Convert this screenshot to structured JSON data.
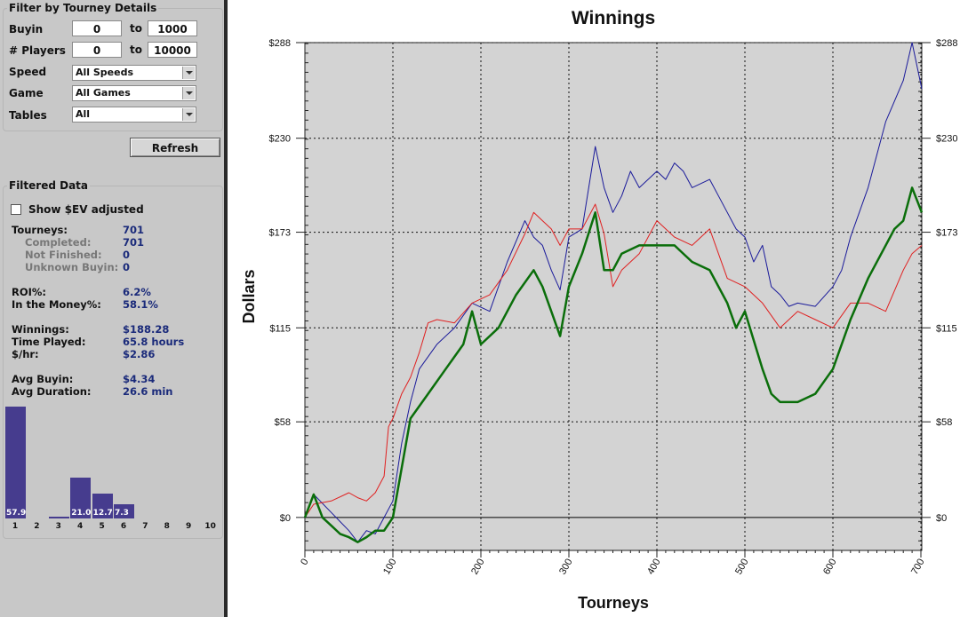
{
  "filter": {
    "title": "Filter by Tourney Details",
    "buyin_label": "Buyin",
    "buyin_from": "0",
    "buyin_to": "1000",
    "players_label": "# Players",
    "players_from": "0",
    "players_to": "10000",
    "to_label": "to",
    "speed_label": "Speed",
    "speed_value": "All Speeds",
    "game_label": "Game",
    "game_value": "All Games",
    "tables_label": "Tables",
    "tables_value": "All",
    "refresh": "Refresh"
  },
  "filtered": {
    "title": "Filtered Data",
    "ev_label": "Show $EV adjusted",
    "stats": [
      {
        "label": "Tourneys:",
        "value": "701",
        "sub": false
      },
      {
        "label": "Completed:",
        "value": "701",
        "sub": true
      },
      {
        "label": "Not Finished:",
        "value": "0",
        "sub": true
      },
      {
        "label": "Unknown Buyin:",
        "value": "0",
        "sub": true
      },
      {
        "label": "ROI%:",
        "value": "6.2%",
        "sub": false
      },
      {
        "label": "In the Money%:",
        "value": "58.1%",
        "sub": false
      },
      {
        "label": "Winnings:",
        "value": "$188.28",
        "sub": false
      },
      {
        "label": "Time Played:",
        "value": "65.8 hours",
        "sub": false
      },
      {
        "label": "$/hr:",
        "value": "$2.86",
        "sub": false
      },
      {
        "label": "Avg Buyin:",
        "value": "$4.34",
        "sub": false
      },
      {
        "label": "Avg Duration:",
        "value": "26.6 min",
        "sub": false
      }
    ]
  },
  "finish_histogram": {
    "positions": [
      "1",
      "2",
      "3",
      "4",
      "5",
      "6",
      "7",
      "8",
      "9",
      "10"
    ],
    "values": [
      57.9,
      0,
      1.1,
      21.0,
      12.7,
      7.3,
      0,
      0,
      0,
      0
    ],
    "labels": [
      "57.9",
      "",
      "",
      "21.0",
      "12.7",
      "7.3",
      "",
      "",
      "",
      ""
    ]
  },
  "colors": {
    "panel_bg": "#c8c8c8",
    "chart_bg": "#d3d3d3",
    "blue_line": "#1a1a9a",
    "red_line": "#e02020",
    "green_line": "#0a6e0a",
    "bar": "#463c8e"
  },
  "chart_data": {
    "type": "line",
    "title": "Winnings",
    "xlabel": "Tourneys",
    "ylabel": "Dollars",
    "xlim": [
      0,
      701
    ],
    "ylim": [
      -20,
      288
    ],
    "x_ticks": [
      "0",
      "100",
      "200",
      "300",
      "400",
      "500",
      "600",
      "700"
    ],
    "y_ticks": [
      "$0",
      "$58",
      "$115",
      "$173",
      "$230",
      "$288"
    ],
    "grid": true,
    "series": [
      {
        "color": "blue",
        "width": 1,
        "x": [
          0,
          10,
          30,
          50,
          60,
          70,
          80,
          90,
          100,
          110,
          120,
          130,
          150,
          170,
          190,
          210,
          230,
          250,
          260,
          270,
          280,
          290,
          300,
          315,
          330,
          340,
          350,
          360,
          370,
          380,
          400,
          410,
          420,
          430,
          440,
          460,
          470,
          480,
          490,
          500,
          510,
          520,
          530,
          540,
          550,
          560,
          580,
          600,
          610,
          620,
          640,
          660,
          680,
          690,
          701
        ],
        "y": [
          0,
          14,
          3,
          -8,
          -15,
          -8,
          -10,
          0,
          10,
          45,
          70,
          90,
          105,
          115,
          130,
          125,
          155,
          180,
          170,
          165,
          150,
          138,
          170,
          175,
          225,
          200,
          185,
          195,
          210,
          200,
          210,
          205,
          215,
          210,
          200,
          205,
          195,
          185,
          175,
          170,
          155,
          165,
          140,
          135,
          128,
          130,
          128,
          140,
          150,
          170,
          200,
          240,
          265,
          288,
          260
        ]
      },
      {
        "color": "red",
        "width": 1,
        "x": [
          0,
          10,
          30,
          50,
          60,
          70,
          80,
          90,
          95,
          100,
          110,
          120,
          130,
          140,
          150,
          170,
          190,
          210,
          230,
          250,
          260,
          270,
          280,
          290,
          300,
          315,
          330,
          340,
          350,
          360,
          380,
          400,
          420,
          440,
          460,
          480,
          500,
          520,
          540,
          560,
          580,
          600,
          620,
          640,
          660,
          680,
          690,
          701
        ],
        "y": [
          0,
          8,
          10,
          15,
          12,
          10,
          15,
          25,
          55,
          60,
          75,
          85,
          100,
          118,
          120,
          118,
          130,
          135,
          150,
          172,
          185,
          180,
          175,
          165,
          175,
          175,
          190,
          172,
          140,
          150,
          160,
          180,
          170,
          165,
          175,
          145,
          140,
          130,
          115,
          125,
          120,
          115,
          130,
          130,
          125,
          150,
          160,
          165
        ]
      },
      {
        "color": "green",
        "width": 2.5,
        "x": [
          0,
          10,
          20,
          30,
          40,
          50,
          60,
          70,
          80,
          90,
          100,
          110,
          120,
          140,
          160,
          180,
          190,
          200,
          220,
          240,
          260,
          270,
          280,
          290,
          300,
          315,
          330,
          340,
          350,
          360,
          380,
          400,
          420,
          440,
          460,
          480,
          490,
          500,
          520,
          530,
          540,
          560,
          580,
          600,
          620,
          640,
          660,
          670,
          680,
          690,
          701
        ],
        "y": [
          0,
          14,
          0,
          -5,
          -10,
          -12,
          -15,
          -12,
          -8,
          -8,
          0,
          30,
          60,
          75,
          90,
          105,
          125,
          105,
          115,
          135,
          150,
          140,
          125,
          110,
          140,
          160,
          185,
          150,
          150,
          160,
          165,
          165,
          165,
          155,
          150,
          130,
          115,
          125,
          90,
          75,
          70,
          70,
          75,
          90,
          120,
          145,
          165,
          175,
          180,
          200,
          185
        ]
      }
    ]
  }
}
